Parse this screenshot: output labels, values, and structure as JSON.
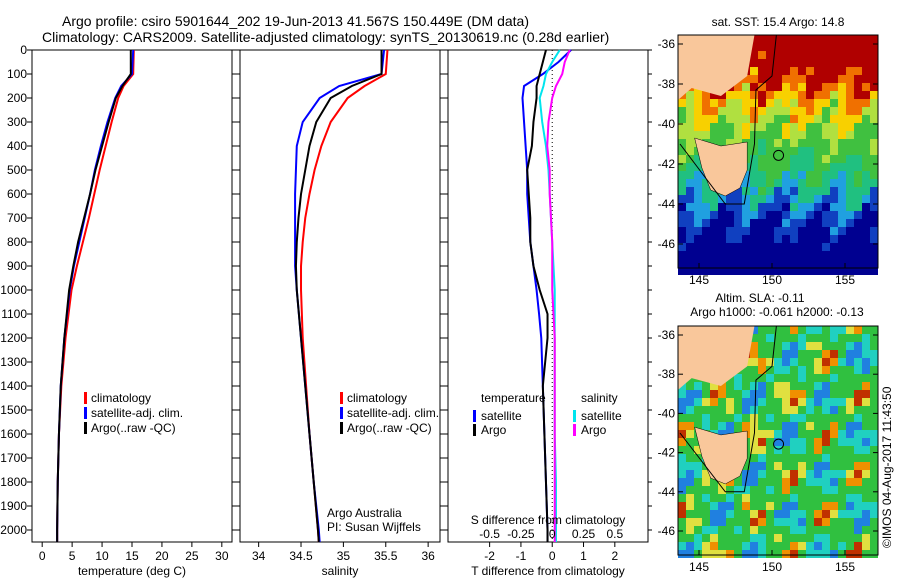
{
  "title_line1": "Argo profile: csiro 5901644_202 19-Jun-2013 41.567S 150.449E (DM data)",
  "title_line2": "Climatology: CARS2009. Satellite-adjusted climatology: synTS_20130619.nc (0.28d earlier)",
  "side_stamp": "©IMOS 04-Aug-2017 11:43:50",
  "colors": {
    "climatology": "#ff0000",
    "satellite": "#0000ff",
    "argo": "#000000",
    "s_satellite": "#00e5ee",
    "s_argo": "#ff00ff",
    "land": "#f9c79b"
  },
  "chart_data": [
    {
      "type": "line",
      "xlabel": "temperature (deg C)",
      "ylabel": "depth",
      "xlim": [
        -1.7,
        31.7
      ],
      "ylim": [
        2050,
        0
      ],
      "xticks": [
        "0",
        "5",
        "10",
        "15",
        "20",
        "25",
        "30"
      ],
      "yticks": [
        "0",
        "100",
        "200",
        "300",
        "400",
        "500",
        "600",
        "700",
        "800",
        "900",
        "1000",
        "1100",
        "1200",
        "1300",
        "1400",
        "1500",
        "1600",
        "1700",
        "1800",
        "1900",
        "2000"
      ],
      "legend": [
        "climatology",
        "satellite-adj. clim.",
        "Argo(..raw -QC)"
      ],
      "depth": [
        0,
        100,
        150,
        200,
        300,
        400,
        500,
        600,
        700,
        800,
        900,
        1000,
        1200,
        1400,
        1600,
        1800,
        2000,
        2050
      ],
      "series": [
        {
          "name": "climatology",
          "values": [
            15.3,
            15.2,
            13.6,
            12.7,
            11.6,
            10.6,
            9.6,
            8.7,
            7.8,
            6.8,
            5.8,
            4.9,
            3.9,
            3.2,
            2.8,
            2.6,
            2.5,
            2.5
          ]
        },
        {
          "name": "satellite-adj. clim.",
          "values": [
            15.2,
            15.0,
            13.2,
            12.2,
            10.9,
            9.8,
            8.8,
            8.0,
            7.1,
            6.2,
            5.3,
            4.6,
            3.7,
            3.1,
            2.8,
            2.6,
            2.5,
            2.5
          ]
        },
        {
          "name": "Argo(..raw -QC)",
          "values": [
            14.8,
            14.8,
            13.4,
            12.3,
            11.1,
            10.0,
            8.9,
            8.0,
            7.0,
            6.0,
            5.2,
            4.5,
            3.7,
            3.1,
            2.8,
            2.6,
            2.5,
            2.5
          ]
        }
      ]
    },
    {
      "type": "line",
      "xlabel": "salinity",
      "xlim": [
        33.78,
        36.14
      ],
      "ylim": [
        2050,
        0
      ],
      "xticks": [
        "34",
        "34.5",
        "35",
        "35.5",
        "36"
      ],
      "legend": [
        "climatology",
        "satellite-adj. clim.",
        "Argo(..raw -QC)"
      ],
      "annotation": [
        "Argo Australia",
        "PI: Susan Wijffels"
      ],
      "depth": [
        0,
        100,
        150,
        200,
        300,
        400,
        500,
        600,
        700,
        800,
        900,
        1000,
        1200,
        1400,
        1600,
        1800,
        2000,
        2050
      ],
      "series": [
        {
          "name": "climatology",
          "values": [
            35.52,
            35.5,
            35.25,
            35.05,
            34.85,
            34.74,
            34.66,
            34.6,
            34.55,
            34.52,
            34.5,
            34.5,
            34.52,
            34.56,
            34.6,
            34.65,
            34.7,
            34.71
          ]
        },
        {
          "name": "satellite-adj. clim.",
          "values": [
            35.48,
            35.45,
            34.95,
            34.72,
            34.52,
            34.45,
            34.44,
            34.43,
            34.43,
            34.43,
            34.43,
            34.45,
            34.5,
            34.55,
            34.6,
            34.65,
            34.71,
            34.72
          ]
        },
        {
          "name": "Argo(..raw -QC)",
          "values": [
            35.45,
            35.45,
            35.1,
            34.85,
            34.68,
            34.6,
            34.55,
            34.5,
            34.47,
            34.45,
            34.44,
            34.45,
            34.5,
            34.55,
            34.6,
            34.65,
            34.7,
            34.71
          ]
        }
      ]
    },
    {
      "type": "line",
      "xlabel": "T difference from climatology",
      "x2label": "S difference from climatology",
      "xlim": [
        -3.33,
        3.06
      ],
      "ylim": [
        2050,
        0
      ],
      "xticks": [
        "-2",
        "-1",
        "0",
        "1",
        "2"
      ],
      "x2ticks": [
        "-0.5",
        "-0.25",
        "0",
        "0.25",
        "0.5"
      ],
      "legend_t_title": "temperature",
      "legend_s_title": "salinity",
      "legend": [
        "satellite",
        "Argo",
        "satellite",
        "Argo"
      ],
      "depth": [
        0,
        50,
        100,
        150,
        200,
        300,
        400,
        500,
        600,
        700,
        800,
        900,
        1000,
        1100,
        1200,
        1400,
        1600,
        1800,
        2000,
        2050
      ],
      "series": [
        {
          "name": "T satellite",
          "values": [
            0.6,
            0.2,
            -0.3,
            -0.9,
            -0.95,
            -0.9,
            -0.85,
            -0.8,
            -0.8,
            -0.75,
            -0.7,
            -0.6,
            -0.5,
            -0.42,
            -0.35,
            -0.3,
            -0.25,
            -0.2,
            -0.15,
            -0.15
          ]
        },
        {
          "name": "T Argo",
          "values": [
            -0.2,
            -0.3,
            -0.4,
            -0.5,
            -0.5,
            -0.6,
            -0.65,
            -0.8,
            -0.75,
            -0.7,
            -0.7,
            -0.6,
            -0.4,
            -0.15,
            -0.15,
            -0.3,
            -0.25,
            -0.2,
            -0.15,
            -0.15
          ]
        },
        {
          "name": "S satellite",
          "values": [
            0.06,
            0.0,
            -0.05,
            -0.07,
            -0.1,
            -0.08,
            -0.05,
            -0.03,
            -0.02,
            -0.01,
            0.0,
            0.01,
            0.02,
            0.02,
            0.02,
            0.02,
            0.02,
            0.03,
            0.03,
            0.03
          ]
        },
        {
          "name": "S Argo",
          "values": [
            0.14,
            0.1,
            0.08,
            0.03,
            0.0,
            -0.03,
            -0.04,
            -0.02,
            -0.02,
            -0.01,
            0.0,
            0.0,
            0.0,
            0.01,
            0.02,
            0.02,
            0.02,
            0.02,
            0.02,
            0.02
          ]
        }
      ]
    }
  ],
  "maps": [
    {
      "title": "sat. SST: 15.4 Argo: 14.8",
      "lat_ticks": [
        "-36",
        "-38",
        "-40",
        "-42",
        "-44",
        "-46"
      ],
      "lon_ticks": [
        "145",
        "150",
        "155"
      ]
    },
    {
      "title_line1": "Altim. SLA: -0.11",
      "title_line2": "Argo h1000: -0.061 h2000: -0.13",
      "lat_ticks": [
        "-36",
        "-38",
        "-40",
        "-42",
        "-44",
        "-46"
      ],
      "lon_ticks": [
        "145",
        "150",
        "155"
      ]
    }
  ]
}
